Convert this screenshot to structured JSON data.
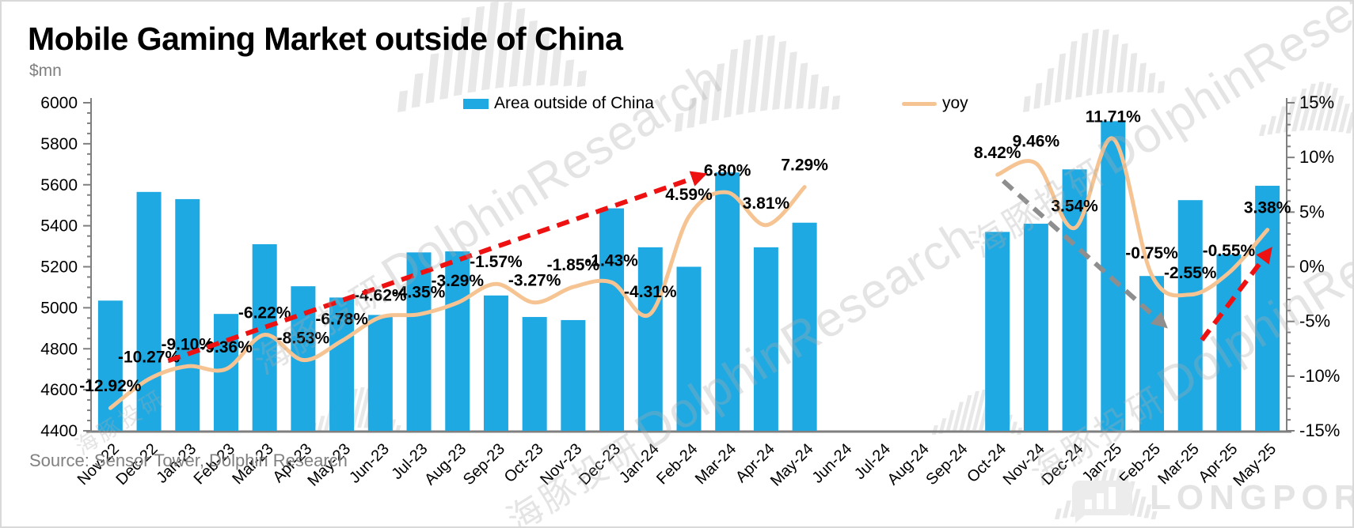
{
  "title": "Mobile Gaming Market outside of China",
  "unit_label": "$mn",
  "source": "Source: Sensor Tower, Dolphin Research",
  "legend": {
    "bars": "Area outside of China",
    "line": "yoy"
  },
  "watermark": {
    "zh": "海豚投研",
    "en": "DolphinResearch",
    "longport": "LONGPORT"
  },
  "colors": {
    "bar": "#1FA9E2",
    "line": "#F5C492",
    "arrow_up": "#EE1111",
    "arrow_down": "#8E8E8E",
    "axis": "#7F7F7F",
    "tick_text": "#000000",
    "muted_text": "#808080",
    "label_text": "#000000",
    "watermark": "#DCDCDC"
  },
  "chart_data": {
    "type": "bar",
    "title": "Mobile Gaming Market outside of China",
    "xlabel": "",
    "ylabel": "$mn",
    "grid": false,
    "legend_position": "top",
    "categories": [
      "Nov-22",
      "Dec-22",
      "Jan-23",
      "Feb-23",
      "Mar-23",
      "Apr-23",
      "May-23",
      "Jun-23",
      "Jul-23",
      "Aug-23",
      "Sep-23",
      "Oct-23",
      "Nov-23",
      "Dec-23",
      "Jan-24",
      "Feb-24",
      "Mar-24",
      "Apr-24",
      "May-24",
      "Jun-24",
      "Jul-24",
      "Aug-24",
      "Sep-24",
      "Oct-24",
      "Nov-24",
      "Dec-24",
      "Jan-25",
      "Feb-25",
      "Mar-25",
      "Apr-25",
      "May-25"
    ],
    "series": [
      {
        "name": "Area outside of China",
        "type": "bar",
        "axis": "left",
        "values": [
          5035,
          5565,
          5530,
          4970,
          5310,
          5105,
          5050,
          4965,
          5270,
          5275,
          5060,
          4955,
          4940,
          5485,
          5295,
          5200,
          5660,
          5295,
          5415,
          null,
          null,
          null,
          null,
          5370,
          5410,
          5675,
          5910,
          5155,
          5525,
          5260,
          5595
        ]
      },
      {
        "name": "yoy",
        "type": "line",
        "axis": "right",
        "smooth": true,
        "values": [
          -12.92,
          -10.27,
          -9.1,
          -9.36,
          -6.22,
          -8.53,
          -6.78,
          -4.62,
          -4.35,
          -3.29,
          -1.57,
          -3.27,
          -1.85,
          -1.43,
          -4.31,
          4.59,
          6.8,
          3.81,
          7.29,
          null,
          null,
          null,
          null,
          8.42,
          9.46,
          3.54,
          11.71,
          -0.75,
          -2.55,
          -0.55,
          3.38
        ],
        "labels": [
          "-12.92%",
          "-10.27%",
          "-9.10%",
          "-9.36%",
          "-6.22%",
          "-8.53%",
          "-6.78%",
          "-4.62%",
          "-4.35%",
          "-3.29%",
          "-1.57%",
          "-3.27%",
          "-1.85%",
          "-1.43%",
          "-4.31%",
          "4.59%",
          "6.80%",
          "3.81%",
          "7.29%",
          null,
          null,
          null,
          null,
          "8.42%",
          "9.46%",
          "3.54%",
          "11.71%",
          "-0.75%",
          "-2.55%",
          "-0.55%",
          "3.38%"
        ]
      }
    ],
    "left_axis": {
      "min": 4400,
      "max": 6000,
      "step": 200,
      "minor_step": 50
    },
    "right_axis": {
      "min": -15,
      "max": 15,
      "step": 5,
      "minor_step": 1,
      "format": "percent"
    },
    "annotations": {
      "arrows": [
        {
          "name": "uptrend-arrow-early",
          "style": "dashed",
          "color_key": "arrow_up",
          "x1_idx": 1.5,
          "y1_pct": -8.6,
          "x2_idx": 15.2,
          "y2_pct": 8.2
        },
        {
          "name": "downtrend-arrow",
          "style": "dashed",
          "color_key": "arrow_down",
          "x1_idx": 23.15,
          "y1_pct": 7.85,
          "x2_idx": 27.2,
          "y2_pct": -4.95
        },
        {
          "name": "uptrend-arrow-late",
          "style": "dashed",
          "color_key": "arrow_up",
          "x1_idx": 28.3,
          "y1_pct": -6.7,
          "x2_idx": 29.95,
          "y2_pct": 1.0
        }
      ]
    }
  }
}
